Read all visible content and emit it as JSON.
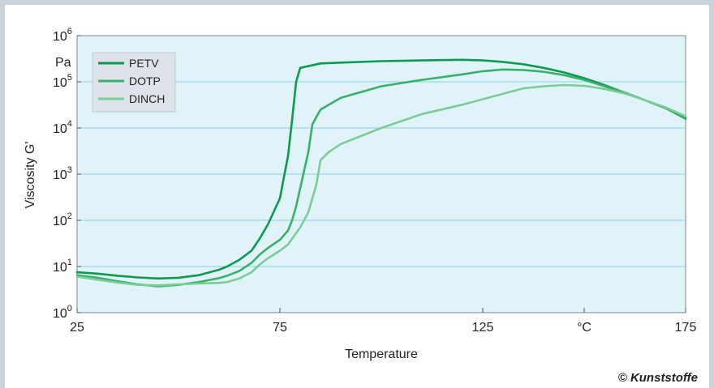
{
  "chart_data": {
    "type": "line",
    "xlabel": "Temperature",
    "ylabel": "Viscosity G'",
    "y_unit": "Pa",
    "y_scale": "log",
    "xlim": [
      25,
      175
    ],
    "ylim_exponents": [
      0,
      6
    ],
    "x_ticks": [
      {
        "label": "25",
        "value": 25
      },
      {
        "label": "75",
        "value": 75
      },
      {
        "label": "125",
        "value": 125
      },
      {
        "label": "°C",
        "value": 150
      },
      {
        "label": "175",
        "value": 175
      }
    ],
    "y_ticks": [
      {
        "base": "10",
        "exp": "0",
        "value": 1
      },
      {
        "base": "10",
        "exp": "1",
        "value": 10
      },
      {
        "base": "10",
        "exp": "2",
        "value": 100
      },
      {
        "base": "10",
        "exp": "3",
        "value": 1000
      },
      {
        "base": "10",
        "exp": "4",
        "value": 10000
      },
      {
        "base": "10",
        "exp": "5",
        "value": 100000
      },
      {
        "base": "10",
        "exp": "6",
        "value": 1000000
      }
    ],
    "grid": "horizontal",
    "legend_position": "top-left",
    "series": [
      {
        "name": "PETV",
        "color": "#0e9a4e",
        "x": [
          25,
          30,
          35,
          40,
          45,
          50,
          55,
          60,
          62,
          65,
          68,
          70,
          72,
          75,
          77,
          78,
          79,
          80,
          85,
          90,
          100,
          110,
          115,
          120,
          125,
          130,
          135,
          140,
          145,
          150,
          155,
          160,
          165,
          170,
          175
        ],
        "y": [
          7.5,
          7.0,
          6.3,
          5.8,
          5.5,
          5.7,
          6.5,
          8.5,
          10,
          14,
          22,
          40,
          80,
          300,
          2500,
          15000,
          100000,
          200000,
          250000,
          260000,
          280000,
          290000,
          295000,
          300000,
          290000,
          270000,
          240000,
          200000,
          160000,
          120000,
          85000,
          58000,
          40000,
          27000,
          16000
        ]
      },
      {
        "name": "DOTP",
        "color": "#3ab06a",
        "x": [
          25,
          30,
          35,
          40,
          45,
          50,
          55,
          60,
          62,
          65,
          68,
          70,
          72,
          75,
          77,
          78,
          79,
          80,
          82,
          83,
          85,
          90,
          100,
          110,
          120,
          125,
          130,
          135,
          140,
          145,
          150,
          155,
          160,
          165,
          170,
          175
        ],
        "y": [
          6.5,
          5.7,
          4.8,
          4.1,
          3.7,
          4.0,
          4.6,
          5.6,
          6.3,
          8.0,
          12,
          18,
          25,
          38,
          60,
          100,
          200,
          500,
          3000,
          12000,
          25000,
          45000,
          80000,
          110000,
          145000,
          170000,
          185000,
          180000,
          165000,
          140000,
          110000,
          80000,
          58000,
          40000,
          27000,
          17000
        ]
      },
      {
        "name": "DINCH",
        "color": "#7ccc97",
        "x": [
          25,
          30,
          35,
          40,
          45,
          50,
          55,
          60,
          62,
          65,
          68,
          70,
          72,
          75,
          77,
          78,
          80,
          82,
          84,
          85,
          87,
          90,
          100,
          110,
          120,
          125,
          130,
          135,
          140,
          145,
          150,
          155,
          160,
          165,
          170,
          175
        ],
        "y": [
          6.0,
          5.2,
          4.5,
          4.0,
          3.9,
          4.1,
          4.3,
          4.4,
          4.6,
          5.5,
          7.5,
          11,
          15,
          22,
          30,
          40,
          70,
          150,
          600,
          2000,
          3000,
          4500,
          10000,
          20000,
          32000,
          42000,
          55000,
          72000,
          80000,
          85000,
          82000,
          70000,
          56000,
          40000,
          28000,
          18000
        ]
      }
    ]
  },
  "credit": "© Kunststoffe"
}
